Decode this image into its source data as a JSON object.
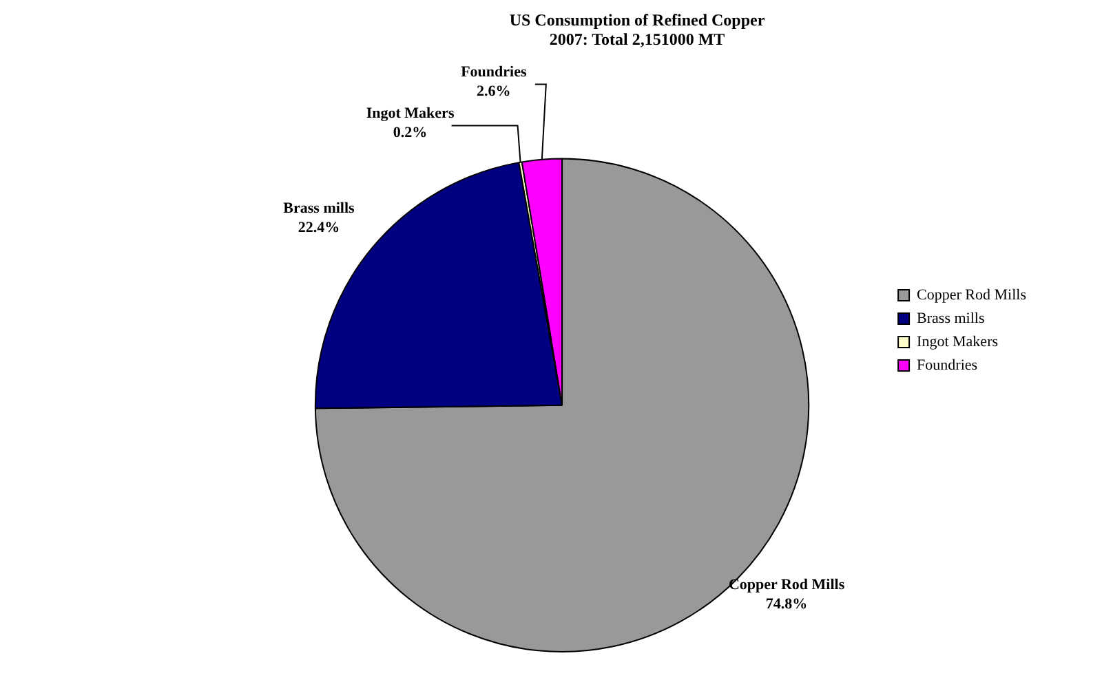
{
  "chart_data": {
    "type": "pie",
    "title": "US Consumption of Refined Copper\n2007: Total 2,151000 MT",
    "categories": [
      "Copper Rod Mills",
      "Brass mills",
      "Ingot Makers",
      "Foundries"
    ],
    "values": [
      74.8,
      22.4,
      0.2,
      2.6
    ],
    "colors": [
      "#999999",
      "#000080",
      "#ffffcc",
      "#ff00ff"
    ],
    "value_labels": [
      "74.8%",
      "22.4%",
      "0.2%",
      "2.6%"
    ],
    "legend": "right"
  }
}
